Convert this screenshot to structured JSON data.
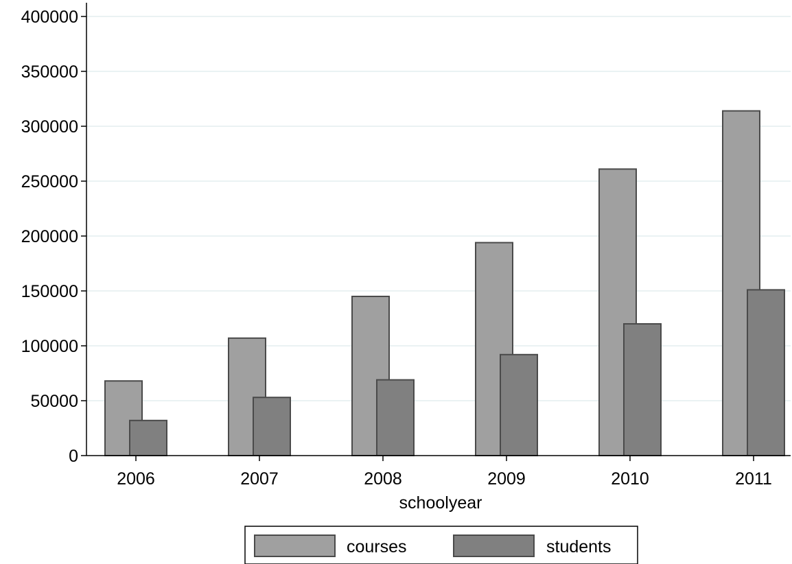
{
  "chart_data": {
    "type": "bar",
    "title": "",
    "xlabel": "schoolyear",
    "ylabel": "",
    "categories": [
      "2006",
      "2007",
      "2008",
      "2009",
      "2010",
      "2011"
    ],
    "series": [
      {
        "name": "courses",
        "values": [
          68000,
          107000,
          145000,
          194000,
          261000,
          314000
        ],
        "color": "#a0a0a0"
      },
      {
        "name": "students",
        "values": [
          32000,
          53000,
          69000,
          92000,
          120000,
          151000
        ],
        "color": "#808080"
      }
    ],
    "y_ticks": [
      "0",
      "50000",
      "100000",
      "150000",
      "200000",
      "250000",
      "300000",
      "350000",
      "400000"
    ],
    "ylim": [
      0,
      400000
    ],
    "grid": true,
    "grid_color": "#eaf2f3",
    "bar_outline_color": "#4a4a4a",
    "legend_position": "bottom-center"
  }
}
